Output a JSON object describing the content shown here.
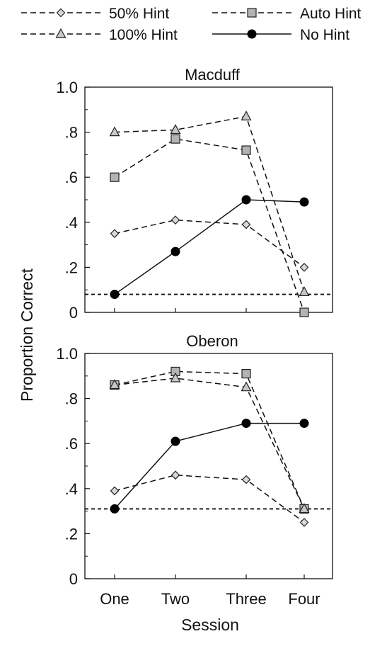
{
  "chart_data": [
    {
      "type": "line",
      "title": "Macduff",
      "xlabel": "Session",
      "ylabel": "Proportion Correct",
      "categories": [
        "One",
        "Two",
        "Three",
        "Four"
      ],
      "ylim": [
        0,
        1.0
      ],
      "yticks": [
        0,
        0.2,
        0.4,
        0.6,
        0.8,
        1.0
      ],
      "ytick_labels": [
        "0",
        ".2",
        ".4",
        ".6",
        ".8",
        "1.0"
      ],
      "chance_level": 0.08,
      "series": [
        {
          "name": "50% Hint",
          "marker": "diamond",
          "dash": true,
          "fill": "#d9d9d9",
          "values": [
            0.35,
            0.41,
            0.39,
            0.2
          ]
        },
        {
          "name": "Auto Hint",
          "marker": "square",
          "dash": true,
          "fill": "#b3b3b3",
          "values": [
            0.6,
            0.77,
            0.72,
            0.0
          ]
        },
        {
          "name": "100% Hint",
          "marker": "triangle",
          "dash": true,
          "fill": "#c8c8c8",
          "values": [
            0.8,
            0.81,
            0.87,
            0.09
          ]
        },
        {
          "name": "No Hint",
          "marker": "circle",
          "dash": false,
          "fill": "#000000",
          "values": [
            0.08,
            0.27,
            0.5,
            0.49
          ]
        }
      ]
    },
    {
      "type": "line",
      "title": "Oberon",
      "xlabel": "Session",
      "ylabel": "Proportion Correct",
      "categories": [
        "One",
        "Two",
        "Three",
        "Four"
      ],
      "ylim": [
        0,
        1.0
      ],
      "yticks": [
        0,
        0.2,
        0.4,
        0.6,
        0.8,
        1.0
      ],
      "ytick_labels": [
        "0",
        ".2",
        ".4",
        ".6",
        ".8",
        "1.0"
      ],
      "chance_level": 0.31,
      "series": [
        {
          "name": "50% Hint",
          "marker": "diamond",
          "dash": true,
          "fill": "#d9d9d9",
          "values": [
            0.39,
            0.46,
            0.44,
            0.25
          ]
        },
        {
          "name": "Auto Hint",
          "marker": "square",
          "dash": true,
          "fill": "#b3b3b3",
          "values": [
            0.86,
            0.92,
            0.91,
            0.31
          ]
        },
        {
          "name": "100% Hint",
          "marker": "triangle",
          "dash": true,
          "fill": "#c8c8c8",
          "values": [
            0.86,
            0.89,
            0.85,
            0.31
          ]
        },
        {
          "name": "No Hint",
          "marker": "circle",
          "dash": false,
          "fill": "#000000",
          "values": [
            0.31,
            0.61,
            0.69,
            0.69
          ]
        }
      ]
    }
  ],
  "legend": {
    "placement": "top",
    "items": [
      {
        "label": "50% Hint",
        "marker": "diamond",
        "dash": true
      },
      {
        "label": "Auto Hint",
        "marker": "square",
        "dash": true
      },
      {
        "label": "100% Hint",
        "marker": "triangle",
        "dash": true
      },
      {
        "label": "No Hint",
        "marker": "circle",
        "dash": false
      }
    ]
  }
}
